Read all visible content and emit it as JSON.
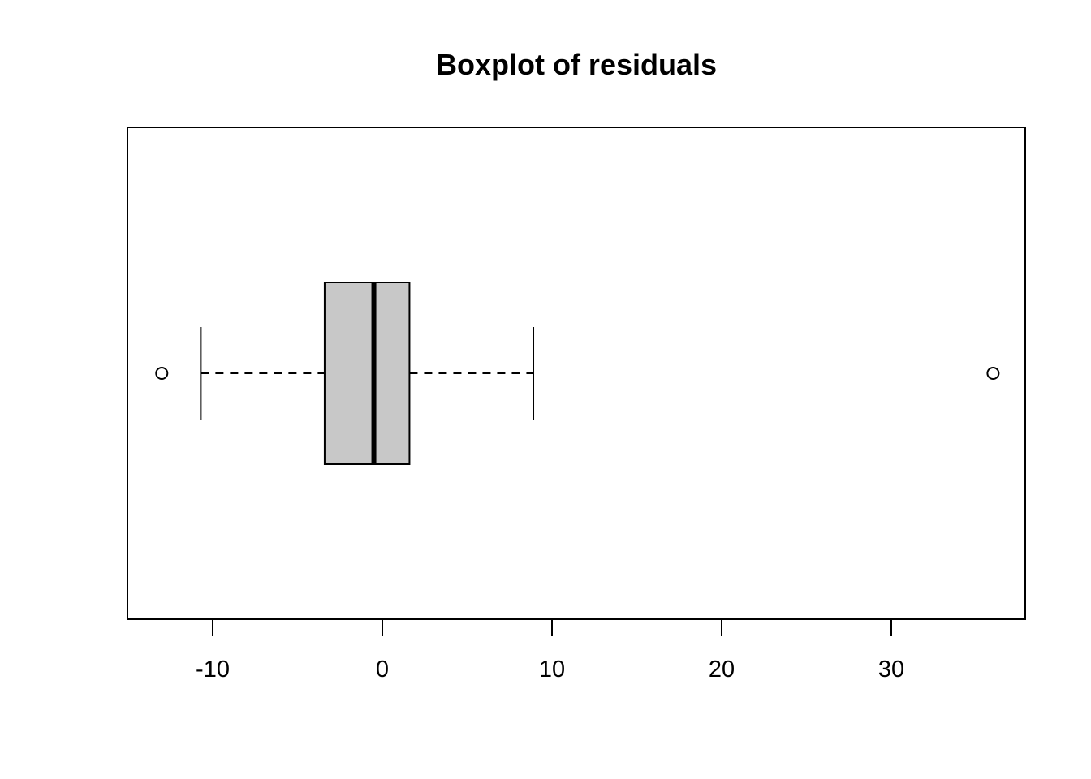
{
  "chart_data": {
    "type": "boxplot",
    "orientation": "horizontal",
    "title": "Boxplot of residuals",
    "xlabel": "",
    "ylabel": "",
    "xlim": [
      -15,
      38
    ],
    "ticks": [
      -10,
      0,
      10,
      20,
      30
    ],
    "tick_labels": [
      "-10",
      "0",
      "10",
      "20",
      "30"
    ],
    "box": {
      "whisker_low": -10.7,
      "q1": -3.4,
      "median": -0.5,
      "q3": 1.6,
      "whisker_high": 8.9
    },
    "outliers": [
      -13.0,
      36.0
    ],
    "box_fill": "#c8c8c8",
    "line_color": "#000000"
  }
}
